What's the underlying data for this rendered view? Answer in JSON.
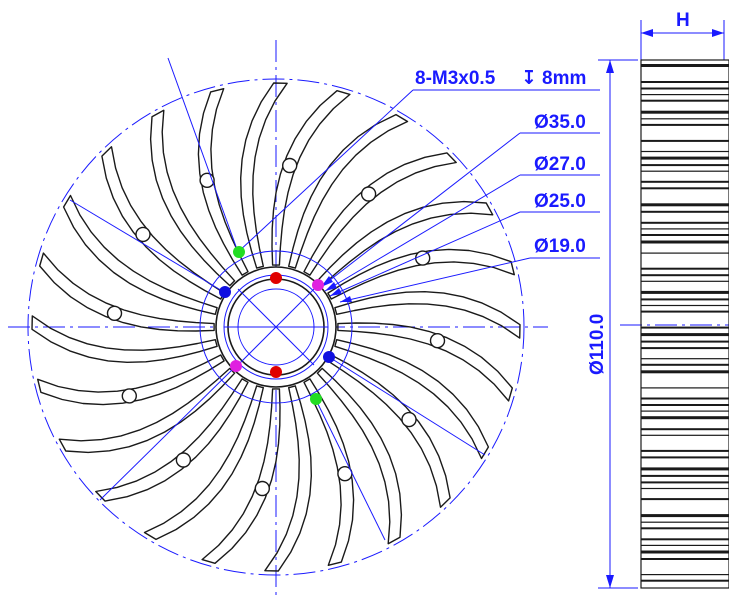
{
  "drawing": {
    "hole_spec": "8-M3x0.5",
    "depth_symbol": "↧",
    "depth": "8mm",
    "diameters": [
      "Ø35.0",
      "Ø27.0",
      "Ø25.0",
      "Ø19.0"
    ],
    "outer_diameter": "Ø110.0",
    "height_label": "H",
    "fin_count": 24
  },
  "colors": {
    "dimension": "#1a1aff",
    "outline": "#1a1a1a",
    "hole_red": "#e00000",
    "hole_blue": "#1010e0",
    "hole_magenta": "#e020e0",
    "hole_green": "#22dd22"
  }
}
